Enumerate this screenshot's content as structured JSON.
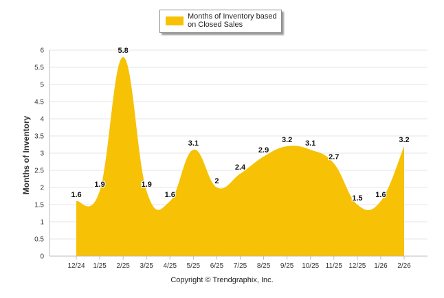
{
  "chart_data": {
    "type": "area",
    "categories": [
      "12/24",
      "1/25",
      "2/25",
      "3/25",
      "4/25",
      "5/25",
      "6/25",
      "7/25",
      "8/25",
      "9/25",
      "10/25",
      "11/25",
      "12/25",
      "1/26",
      "2/26"
    ],
    "series": [
      {
        "name": "Months of Inventory based on Closed Sales",
        "values": [
          1.6,
          1.9,
          5.8,
          1.9,
          1.6,
          3.1,
          2,
          2.4,
          2.9,
          3.2,
          3.1,
          2.7,
          1.5,
          1.6,
          3.2
        ],
        "labels": [
          "1.6",
          "1.9",
          "5.8",
          "1.9",
          "1.6",
          "3.1",
          "2",
          "2.4",
          "2.9",
          "3.2",
          "3.1",
          "2.7",
          "1.5",
          "1.6",
          "3.2"
        ],
        "color": "#f7c106"
      }
    ],
    "ylabel": "Months of Inventory",
    "xlabel": "",
    "ylim": [
      0,
      6
    ],
    "yticks": [
      "0",
      "0.5",
      "1",
      "1.5",
      "2",
      "2.5",
      "3",
      "3.5",
      "4",
      "4.5",
      "5",
      "5.5",
      "6"
    ],
    "grid": true,
    "legend_position": "top-center"
  },
  "footer": {
    "copyright": "Copyright © Trendgraphix, Inc."
  },
  "colors": {
    "fill": "#f7c106",
    "grid": "#e6e6e6",
    "axis": "#bbbbbb"
  }
}
